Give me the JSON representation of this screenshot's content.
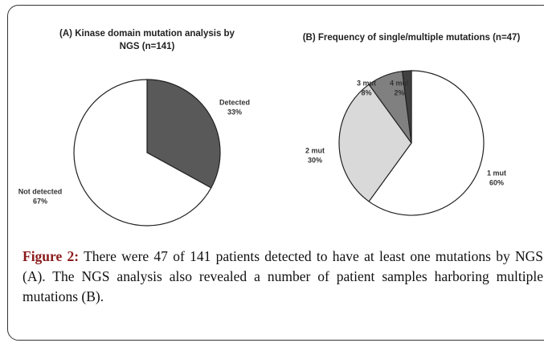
{
  "chart_data": [
    {
      "type": "pie",
      "title": "(A) Kinase domain mutation analysis by NGS (n=141)",
      "categories": [
        "Detected",
        "Not detected"
      ],
      "values": [
        33,
        67
      ],
      "value_labels": [
        "33%",
        "67%"
      ],
      "colors": [
        "#595959",
        "#ffffff"
      ]
    },
    {
      "type": "pie",
      "title": "(B) Frequency of single/multiple mutations (n=47)",
      "categories": [
        "1 mut",
        "2 mut",
        "3 mut",
        "4 mut"
      ],
      "values": [
        60,
        30,
        8,
        2
      ],
      "value_labels": [
        "60%",
        "30%",
        "8%",
        "2%"
      ],
      "colors": [
        "#ffffff",
        "#d9d9d9",
        "#808080",
        "#404040"
      ]
    }
  ],
  "caption": {
    "label": "Figure 2:",
    "text": "There were 47 of 141 patients detected to have at least one mutations by NGS (A). The NGS analysis also revealed a number of patient samples harboring multiple mutations (B)."
  }
}
